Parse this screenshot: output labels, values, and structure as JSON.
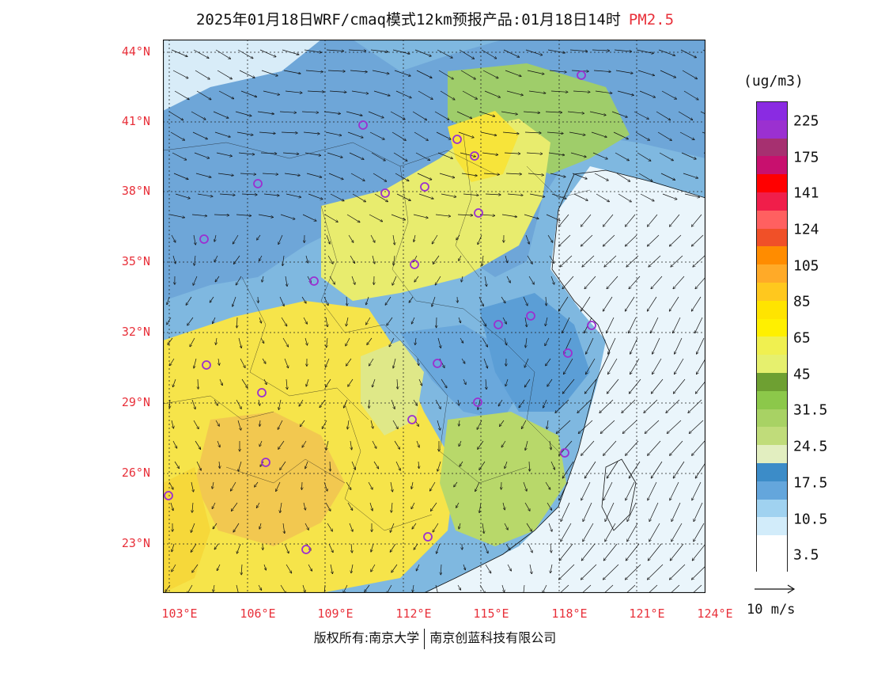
{
  "title": "2025年01月18日WRF/cmaq模式12km预报产品:01月18日14时",
  "pollutant": "PM2.5",
  "lat_labels": [
    "44°N",
    "41°N",
    "38°N",
    "35°N",
    "32°N",
    "29°N",
    "26°N",
    "23°N"
  ],
  "lon_labels": [
    "103°E",
    "106°E",
    "109°E",
    "112°E",
    "115°E",
    "118°E",
    "121°E",
    "124°E"
  ],
  "colorbar": {
    "unit": "(ug/m3)",
    "labels": [
      "225",
      "175",
      "141",
      "124",
      "105",
      "85",
      "65",
      "45",
      "31.5",
      "24.5",
      "17.5",
      "10.5",
      "3.5"
    ],
    "colors": [
      "#8a2be2",
      "#9b30d0",
      "#a63070",
      "#c8106e",
      "#ff0000",
      "#f01e4a",
      "#ff6060",
      "#f05028",
      "#ff8c00",
      "#ffaa28",
      "#ffc81e",
      "#ffe400",
      "#fff000",
      "#f0f050",
      "#e6f06e",
      "#6ea032",
      "#8cc84a",
      "#a8d264",
      "#c0dc7a",
      "#e2eec0",
      "#3c8cc8",
      "#64a6dc",
      "#a0d2f0",
      "#d2ecfa",
      "#ffffff",
      "#ffffff"
    ]
  },
  "wind_scale_label": "10 m/s",
  "copyright_left": "版权所有:南京大学",
  "copyright_right": "南京创蓝科技有限公司",
  "colors": {
    "label_red": "#e8303a",
    "sea": "#e8f4fb"
  }
}
